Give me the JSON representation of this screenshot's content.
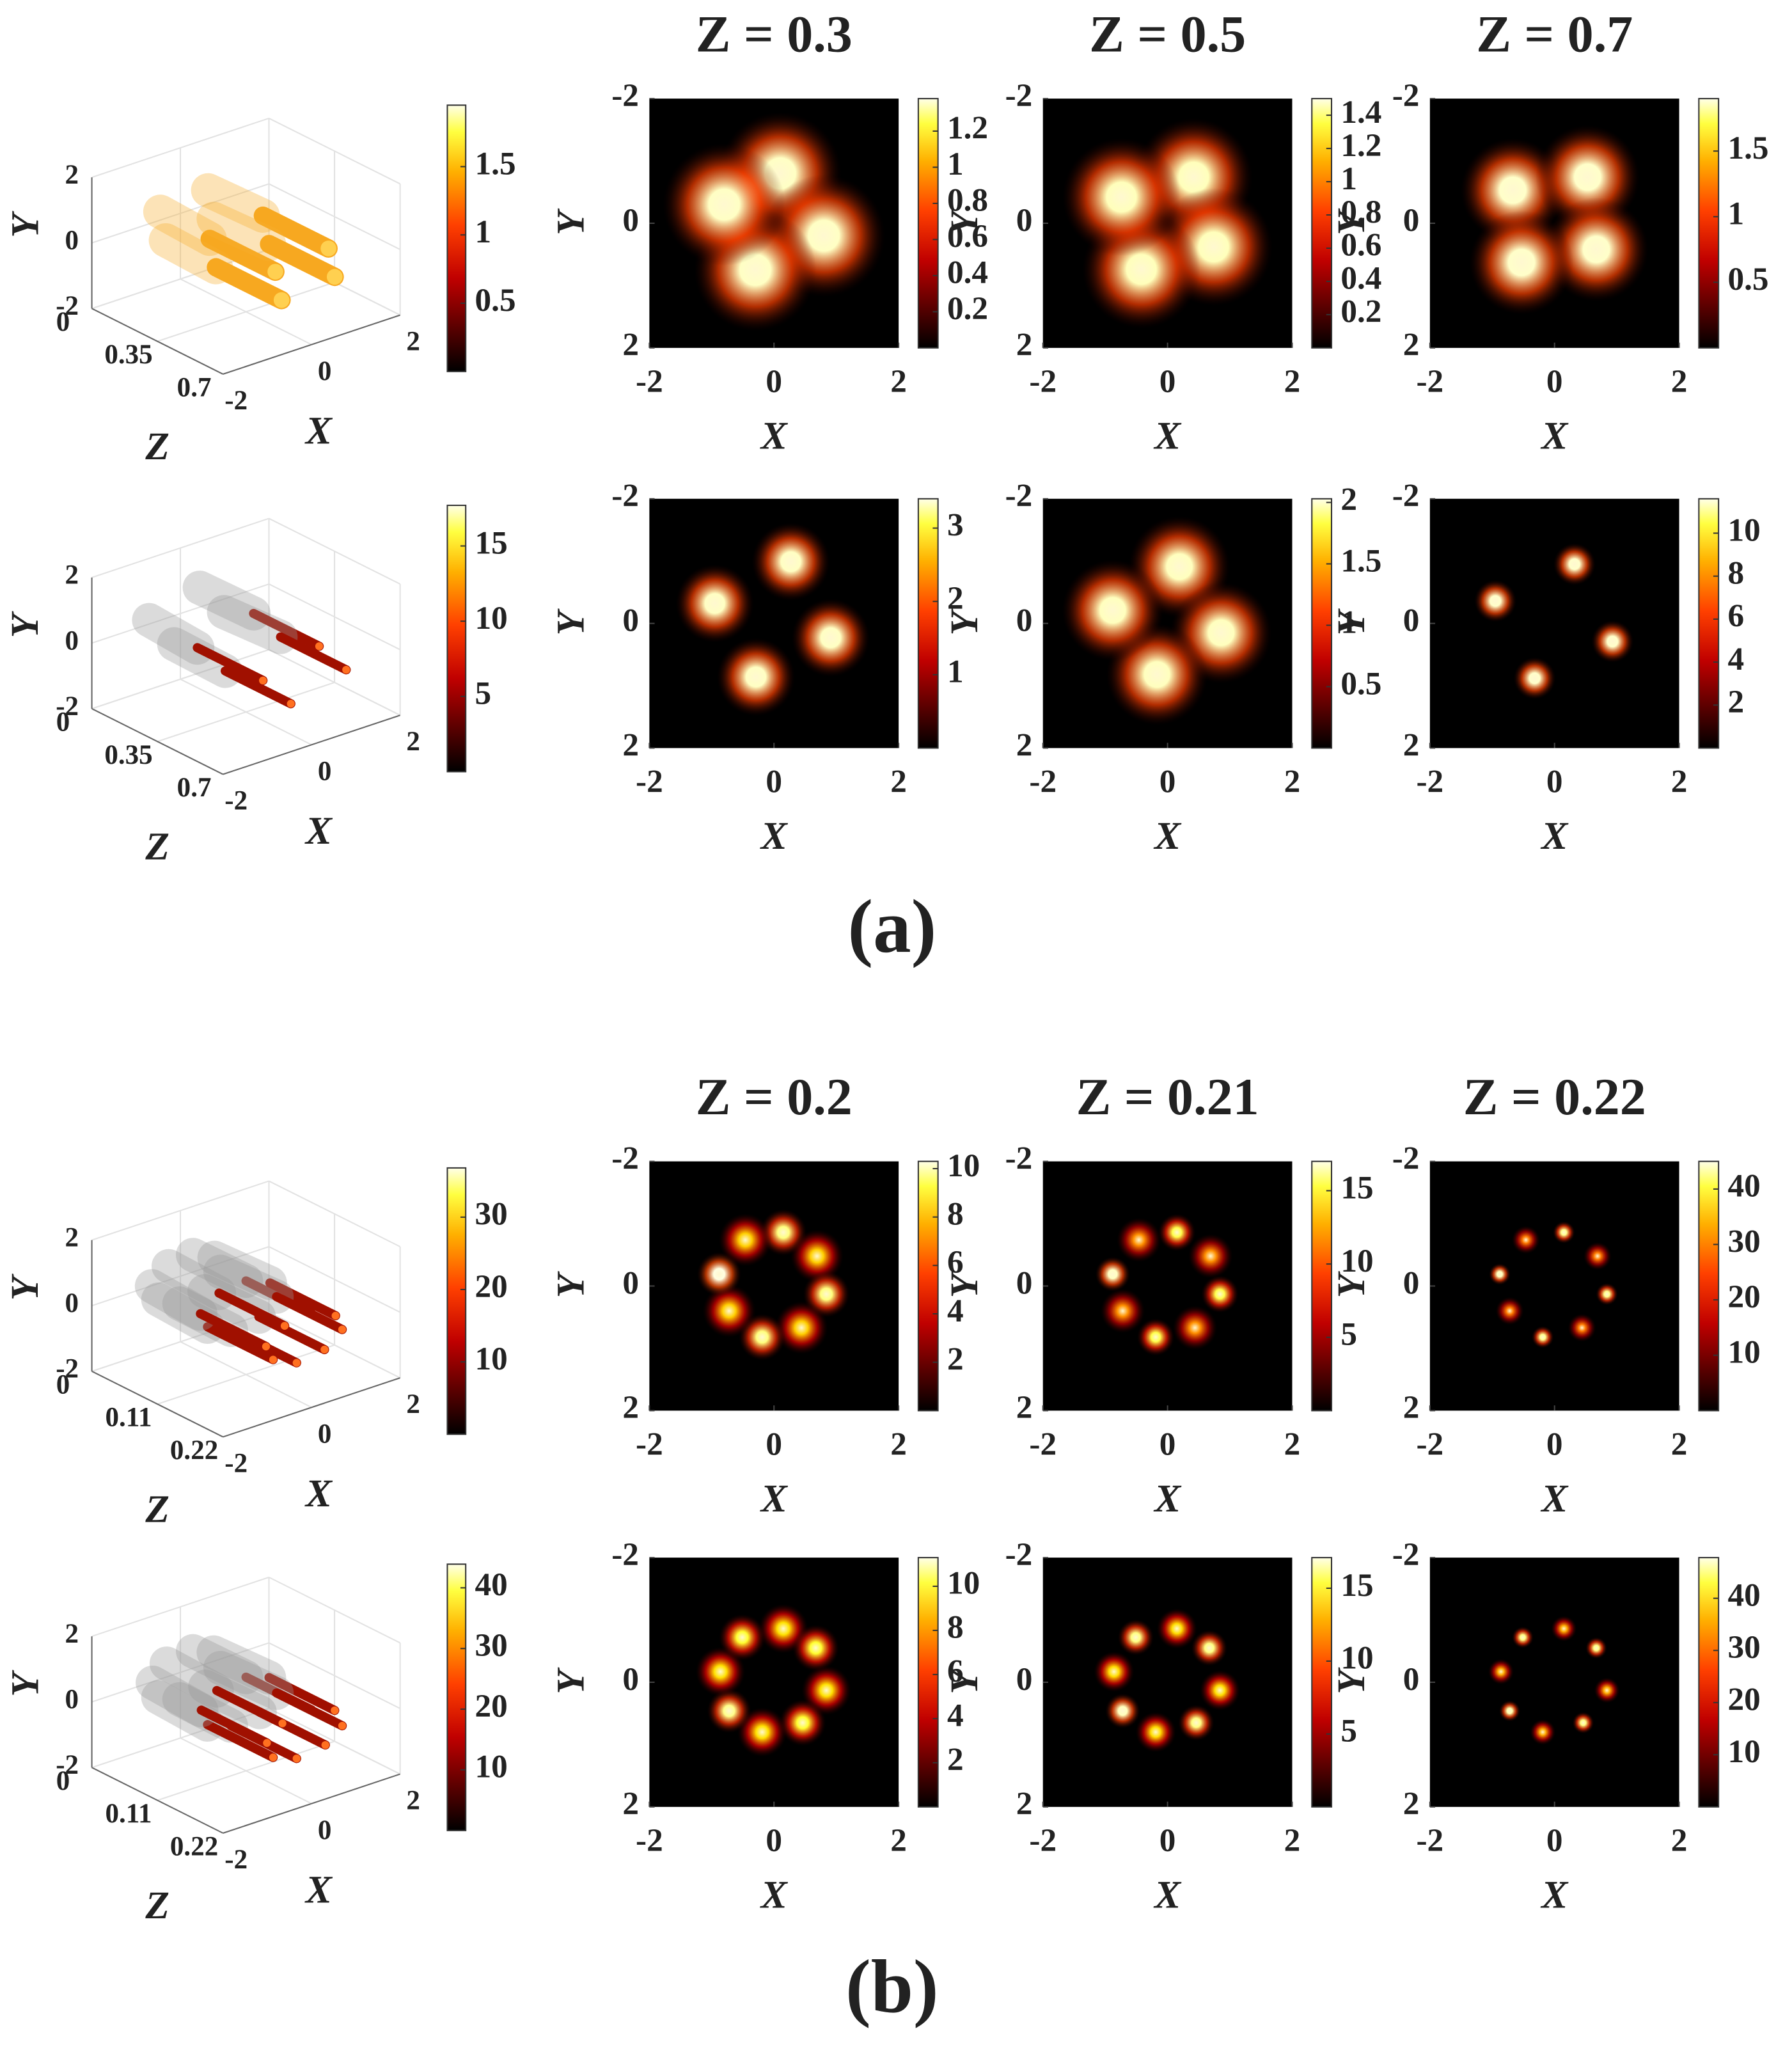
{
  "labels": [
    "(a)",
    "(b)"
  ],
  "chart_data": [
    {
      "type": "volume",
      "xlabel": "X",
      "ylabel": "Y",
      "zlabel": "Z",
      "xlim": [
        -2,
        2
      ],
      "ylim": [
        -2,
        2
      ],
      "zlim": [
        0,
        0.7
      ],
      "xticks": [
        -2,
        0,
        2
      ],
      "yticks": [
        -2,
        0,
        2
      ],
      "zticks": [
        0,
        0.35,
        0.7
      ],
      "colorbar": {
        "clim": [
          0,
          1.95
        ],
        "ticks": [
          0.5,
          1,
          1.5
        ]
      }
    },
    {
      "type": "map",
      "title": "Z = 0.3",
      "xlabel": "X",
      "ylabel": "Y",
      "xlim": [
        -2,
        2
      ],
      "ylim": [
        -2,
        2
      ],
      "y_reversed": true,
      "xticks": [
        -2,
        0,
        2
      ],
      "yticks": [
        -2,
        0,
        2
      ],
      "colorbar": {
        "clim": [
          0,
          1.38
        ],
        "ticks": [
          0.2,
          0.4,
          0.6,
          0.8,
          1,
          1.2
        ]
      },
      "spots": {
        "x": [
          0.1,
          0.8,
          -0.3,
          -0.8
        ],
        "y": [
          -0.8,
          0.2,
          0.75,
          -0.3
        ],
        "values": [
          1.3,
          1.3,
          1.3,
          1.3
        ]
      }
    },
    {
      "type": "map",
      "title": "Z = 0.5",
      "xlabel": "X",
      "ylabel": "Y",
      "xlim": [
        -2,
        2
      ],
      "ylim": [
        -2,
        2
      ],
      "y_reversed": true,
      "xticks": [
        -2,
        0,
        2
      ],
      "yticks": [
        -2,
        0,
        2
      ],
      "colorbar": {
        "clim": [
          0,
          1.5
        ],
        "ticks": [
          0.2,
          0.4,
          0.6,
          0.8,
          1,
          1.2,
          1.4
        ]
      },
      "spots": {
        "x": [
          0.42,
          0.74,
          -0.42,
          -0.74
        ],
        "y": [
          -0.74,
          0.38,
          0.74,
          -0.42
        ],
        "values": [
          1.4,
          1.4,
          1.4,
          1.4
        ]
      }
    },
    {
      "type": "map",
      "title": "Z = 0.7",
      "xlabel": "X",
      "ylabel": "Y",
      "xlim": [
        -2,
        2
      ],
      "ylim": [
        -2,
        2
      ],
      "y_reversed": true,
      "xticks": [
        -2,
        0,
        2
      ],
      "yticks": [
        -2,
        0,
        2
      ],
      "colorbar": {
        "clim": [
          0,
          1.9
        ],
        "ticks": [
          0.5,
          1,
          1.5
        ]
      },
      "spots": {
        "x": [
          -0.67,
          0.53,
          0.67,
          -0.53
        ],
        "y": [
          -0.53,
          -0.74,
          0.42,
          0.63
        ],
        "values": [
          1.8,
          1.8,
          1.8,
          1.8
        ]
      }
    },
    {
      "type": "volume",
      "xlabel": "X",
      "ylabel": "Y",
      "zlabel": "Z",
      "xlim": [
        -2,
        2
      ],
      "ylim": [
        -2,
        2
      ],
      "zlim": [
        0,
        0.7
      ],
      "xticks": [
        -2,
        0,
        2
      ],
      "yticks": [
        -2,
        0,
        2
      ],
      "zticks": [
        0,
        0.35,
        0.7
      ],
      "colorbar": {
        "clim": [
          0,
          17.7
        ],
        "ticks": [
          5,
          10,
          15
        ]
      }
    },
    {
      "type": "map",
      "xlabel": "X",
      "ylabel": "Y",
      "xlim": [
        -2,
        2
      ],
      "ylim": [
        -2,
        2
      ],
      "y_reversed": true,
      "xticks": [
        -2,
        0,
        2
      ],
      "yticks": [
        -2,
        0,
        2
      ],
      "colorbar": {
        "clim": [
          0,
          3.4
        ],
        "ticks": [
          1,
          2,
          3
        ]
      },
      "spots": {
        "x": [
          0.27,
          0.91,
          -0.29,
          -0.95
        ],
        "y": [
          -0.99,
          0.23,
          0.86,
          -0.32
        ],
        "values": [
          3.2,
          3.2,
          3.2,
          3.2
        ]
      }
    },
    {
      "type": "map",
      "xlabel": "X",
      "ylabel": "Y",
      "xlim": [
        -2,
        2
      ],
      "ylim": [
        -2,
        2
      ],
      "y_reversed": true,
      "xticks": [
        -2,
        0,
        2
      ],
      "yticks": [
        -2,
        0,
        2
      ],
      "colorbar": {
        "clim": [
          0,
          2.03
        ],
        "ticks": [
          0.5,
          1,
          1.5,
          2
        ]
      },
      "spots": {
        "x": [
          0.19,
          0.86,
          -0.17,
          -0.88
        ],
        "y": [
          -0.91,
          0.15,
          0.82,
          -0.21
        ],
        "values": [
          1.9,
          1.9,
          1.9,
          1.9
        ]
      }
    },
    {
      "type": "map",
      "xlabel": "X",
      "ylabel": "Y",
      "xlim": [
        -2,
        2
      ],
      "ylim": [
        -2,
        2
      ],
      "y_reversed": true,
      "xticks": [
        -2,
        0,
        2
      ],
      "yticks": [
        -2,
        0,
        2
      ],
      "colorbar": {
        "clim": [
          0,
          11.6
        ],
        "ticks": [
          2,
          4,
          6,
          8,
          10
        ]
      },
      "spots": {
        "x": [
          0.32,
          0.93,
          -0.32,
          -0.95
        ],
        "y": [
          -0.95,
          0.29,
          0.88,
          -0.36
        ],
        "values": [
          11,
          11,
          11,
          11
        ]
      }
    },
    {
      "type": "volume",
      "xlabel": "X",
      "ylabel": "Y",
      "zlabel": "Z",
      "xlim": [
        -2,
        2
      ],
      "ylim": [
        -2,
        2
      ],
      "zlim": [
        0,
        0.22
      ],
      "xticks": [
        -2,
        0,
        2
      ],
      "yticks": [
        -2,
        0,
        2
      ],
      "zticks": [
        0,
        0.11,
        0.22
      ],
      "colorbar": {
        "clim": [
          0,
          36.8
        ],
        "ticks": [
          10,
          20,
          30
        ]
      }
    },
    {
      "type": "map",
      "title": "Z = 0.2",
      "xlabel": "X",
      "ylabel": "Y",
      "xlim": [
        -2,
        2
      ],
      "ylim": [
        -2,
        2
      ],
      "y_reversed": true,
      "xticks": [
        -2,
        0,
        2
      ],
      "yticks": [
        -2,
        0,
        2
      ],
      "colorbar": {
        "clim": [
          0,
          10.3
        ],
        "ticks": [
          2,
          4,
          6,
          8,
          10
        ]
      },
      "spots": {
        "x": [
          0.15,
          0.69,
          0.84,
          0.44,
          -0.19,
          -0.72,
          -0.88,
          -0.46
        ],
        "y": [
          -0.86,
          -0.48,
          0.13,
          0.67,
          0.82,
          0.4,
          -0.19,
          -0.74
        ],
        "values": [
          9,
          7,
          9,
          7,
          9,
          7,
          10,
          7
        ]
      }
    },
    {
      "type": "map",
      "title": "Z = 0.21",
      "xlabel": "X",
      "ylabel": "Y",
      "xlim": [
        -2,
        2
      ],
      "ylim": [
        -2,
        2
      ],
      "y_reversed": true,
      "xticks": [
        -2,
        0,
        2
      ],
      "yticks": [
        -2,
        0,
        2
      ],
      "colorbar": {
        "clim": [
          0,
          17
        ],
        "ticks": [
          5,
          10,
          15
        ]
      },
      "spots": {
        "x": [
          0.15,
          0.69,
          0.84,
          0.44,
          -0.19,
          -0.72,
          -0.88,
          -0.46
        ],
        "y": [
          -0.86,
          -0.48,
          0.13,
          0.67,
          0.82,
          0.4,
          -0.19,
          -0.74
        ],
        "values": [
          14,
          10,
          14,
          10,
          14,
          10,
          16,
          10
        ]
      }
    },
    {
      "type": "map",
      "title": "Z = 0.22",
      "xlabel": "X",
      "ylabel": "Y",
      "xlim": [
        -2,
        2
      ],
      "ylim": [
        -2,
        2
      ],
      "y_reversed": true,
      "xticks": [
        -2,
        0,
        2
      ],
      "yticks": [
        -2,
        0,
        2
      ],
      "colorbar": {
        "clim": [
          0,
          45
        ],
        "ticks": [
          10,
          20,
          30,
          40
        ]
      },
      "spots": {
        "x": [
          0.15,
          0.69,
          0.84,
          0.44,
          -0.19,
          -0.72,
          -0.88,
          -0.46
        ],
        "y": [
          -0.86,
          -0.48,
          0.13,
          0.67,
          0.82,
          0.4,
          -0.19,
          -0.74
        ],
        "values": [
          40,
          25,
          40,
          25,
          40,
          25,
          42,
          25
        ]
      }
    },
    {
      "type": "volume",
      "xlabel": "X",
      "ylabel": "Y",
      "zlabel": "Z",
      "xlim": [
        -2,
        2
      ],
      "ylim": [
        -2,
        2
      ],
      "zlim": [
        0,
        0.22
      ],
      "xticks": [
        -2,
        0,
        2
      ],
      "yticks": [
        -2,
        0,
        2
      ],
      "zticks": [
        0,
        0.11,
        0.22
      ],
      "colorbar": {
        "clim": [
          0,
          43.9
        ],
        "ticks": [
          10,
          20,
          30,
          40
        ]
      }
    },
    {
      "type": "map",
      "xlabel": "X",
      "ylabel": "Y",
      "xlim": [
        -2,
        2
      ],
      "ylim": [
        -2,
        2
      ],
      "y_reversed": true,
      "xticks": [
        -2,
        0,
        2
      ],
      "yticks": [
        -2,
        0,
        2
      ],
      "colorbar": {
        "clim": [
          0,
          11.3
        ],
        "ticks": [
          2,
          4,
          6,
          8,
          10
        ]
      },
      "spots": {
        "x": [
          0.15,
          0.67,
          0.84,
          0.46,
          -0.19,
          -0.72,
          -0.86,
          -0.51
        ],
        "y": [
          -0.86,
          -0.55,
          0.13,
          0.65,
          0.8,
          0.46,
          -0.17,
          -0.72
        ],
        "values": [
          8,
          9,
          8,
          9,
          8,
          10,
          8,
          9
        ]
      }
    },
    {
      "type": "map",
      "xlabel": "X",
      "ylabel": "Y",
      "xlim": [
        -2,
        2
      ],
      "ylim": [
        -2,
        2
      ],
      "y_reversed": true,
      "xticks": [
        -2,
        0,
        2
      ],
      "yticks": [
        -2,
        0,
        2
      ],
      "colorbar": {
        "clim": [
          0,
          17.1
        ],
        "ticks": [
          5,
          10,
          15
        ]
      },
      "spots": {
        "x": [
          0.15,
          0.67,
          0.84,
          0.46,
          -0.19,
          -0.72,
          -0.86,
          -0.51
        ],
        "y": [
          -0.86,
          -0.55,
          0.13,
          0.65,
          0.8,
          0.46,
          -0.17,
          -0.72
        ],
        "values": [
          12,
          15,
          12,
          15,
          12,
          16,
          12,
          15
        ]
      }
    },
    {
      "type": "map",
      "xlabel": "X",
      "ylabel": "Y",
      "xlim": [
        -2,
        2
      ],
      "ylim": [
        -2,
        2
      ],
      "y_reversed": true,
      "xticks": [
        -2,
        0,
        2
      ],
      "yticks": [
        -2,
        0,
        2
      ],
      "colorbar": {
        "clim": [
          0,
          47.8
        ],
        "ticks": [
          10,
          20,
          30,
          40
        ]
      },
      "spots": {
        "x": [
          0.15,
          0.67,
          0.84,
          0.46,
          -0.19,
          -0.72,
          -0.86,
          -0.51
        ],
        "y": [
          -0.86,
          -0.55,
          0.13,
          0.65,
          0.8,
          0.46,
          -0.17,
          -0.72
        ],
        "values": [
          30,
          42,
          30,
          42,
          30,
          44,
          30,
          42
        ]
      }
    }
  ]
}
